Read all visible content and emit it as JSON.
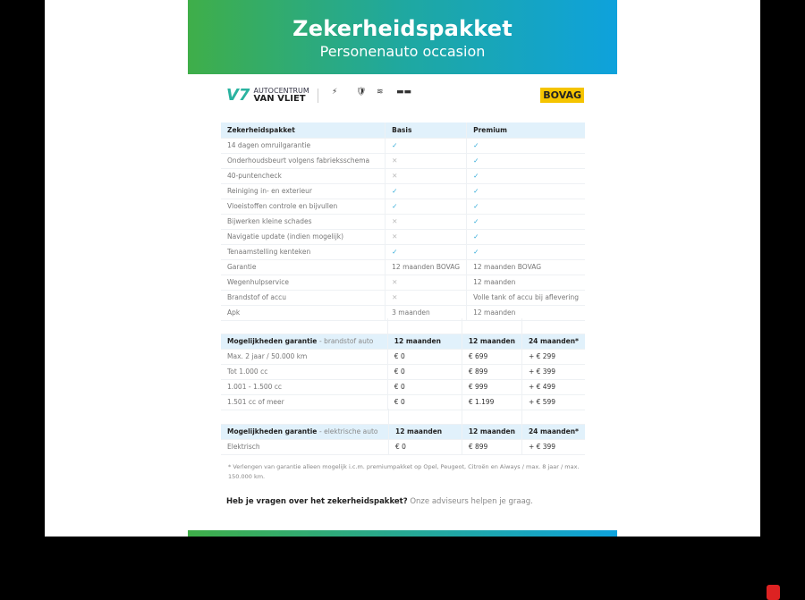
{
  "banner": {
    "title": "Zekerheidspakket",
    "subtitle": "Personenauto occasion"
  },
  "logos": {
    "dealer_line1": "AUTOCENTRUM",
    "dealer_line2": "VAN VLIET",
    "brands": [
      "OPEL",
      "PEUGEOT",
      "CITROËN",
      "AIWAYS"
    ],
    "bovag": "BOVAG"
  },
  "colors": {
    "gradient_start": "#3fae49",
    "gradient_end": "#0ea2dc",
    "header_bg": "#e1f1fb",
    "check": "#2aa7d6"
  },
  "package_table": {
    "headers": [
      "Zekerheidspakket",
      "Basis",
      "Premium"
    ],
    "rows": [
      [
        "14 dagen omruilgarantie",
        "✓",
        "✓"
      ],
      [
        "Onderhoudsbeurt volgens fabrieksschema",
        "✕",
        "✓"
      ],
      [
        "40-puntencheck",
        "✕",
        "✓"
      ],
      [
        "Reiniging in- en exterieur",
        "✓",
        "✓"
      ],
      [
        "Vloeistoffen controle en bijvullen",
        "✓",
        "✓"
      ],
      [
        "Bijwerken kleine schades",
        "✕",
        "✓"
      ],
      [
        "Navigatie update (indien mogelijk)",
        "✕",
        "✓"
      ],
      [
        "Tenaamstelling kenteken",
        "✓",
        "✓"
      ],
      [
        "Garantie",
        "12 maanden BOVAG",
        "12 maanden BOVAG"
      ],
      [
        "Wegenhulpservice",
        "✕",
        "12 maanden"
      ],
      [
        "Brandstof of accu",
        "✕",
        "Volle tank of accu bij aflevering"
      ],
      [
        "Apk",
        "3 maanden",
        "12 maanden"
      ]
    ]
  },
  "fuel_table": {
    "title": "Mogelijkheden garantie",
    "subtitle": "- brandstof auto",
    "headers": [
      "12 maanden",
      "12 maanden",
      "24 maanden*"
    ],
    "rows": [
      [
        "Max. 2 jaar / 50.000 km",
        "€ 0",
        "€ 699",
        "+ € 299"
      ],
      [
        "Tot 1.000 cc",
        "€ 0",
        "€ 899",
        "+ € 399"
      ],
      [
        "1.001 - 1.500 cc",
        "€ 0",
        "€ 999",
        "+ € 499"
      ],
      [
        "1.501 cc of meer",
        "€ 0",
        "€ 1.199",
        "+ € 599"
      ]
    ]
  },
  "electric_table": {
    "title": "Mogelijkheden garantie",
    "subtitle": "- elektrische auto",
    "headers": [
      "12 maanden",
      "12 maanden",
      "24 maanden*"
    ],
    "rows": [
      [
        "Elektrisch",
        "€ 0",
        "€ 899",
        "+ € 399"
      ]
    ]
  },
  "footnote": "* Verlengen van garantie alleen mogelijk i.c.m. premiumpakket op Opel, Peugeot, Citroën en Aiways / max. 8 jaar / max. 150.000 km.",
  "question": {
    "bold": "Heb je vragen over het zekerheidspakket?",
    "rest": " Onze adviseurs helpen je graag."
  }
}
